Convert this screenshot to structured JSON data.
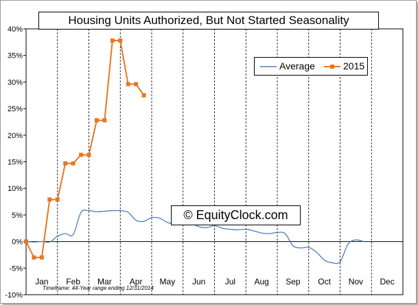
{
  "chart_data": {
    "type": "line",
    "title": "Housing Units Authorized, But Not Started Seasonality",
    "watermark": "© EquityClock.com",
    "footnote": "Timeframe: 44-Year range ending 12/31/2014",
    "xlabel": "",
    "ylabel": "",
    "categories": [
      "Jan",
      "Feb",
      "Mar",
      "Apr",
      "May",
      "Jun",
      "Jul",
      "Aug",
      "Sep",
      "Oct",
      "Nov",
      "Dec"
    ],
    "ylim": [
      -0.1,
      0.4
    ],
    "yticks": [
      "40%",
      "35%",
      "30%",
      "25%",
      "20%",
      "15%",
      "10%",
      "5%",
      "0%",
      "-5%",
      "-10%"
    ],
    "grid": {
      "vertical": "dashed",
      "horizontal": false
    },
    "legend": {
      "position": "top-right",
      "entries": [
        "Average",
        "2015"
      ]
    },
    "series": [
      {
        "name": "Average",
        "color": "#4a7ebb",
        "smooth": true,
        "points": [
          [
            0.0,
            0.0
          ],
          [
            0.25,
            -0.001
          ],
          [
            0.5,
            0.0
          ],
          [
            0.75,
            -0.001
          ],
          [
            1.0,
            0.01
          ],
          [
            1.25,
            0.015
          ],
          [
            1.5,
            0.013
          ],
          [
            1.75,
            0.055
          ],
          [
            2.0,
            0.058
          ],
          [
            2.25,
            0.056
          ],
          [
            2.5,
            0.057
          ],
          [
            2.75,
            0.058
          ],
          [
            3.0,
            0.058
          ],
          [
            3.25,
            0.055
          ],
          [
            3.5,
            0.04
          ],
          [
            3.75,
            0.038
          ],
          [
            4.0,
            0.045
          ],
          [
            4.25,
            0.044
          ],
          [
            4.5,
            0.036
          ],
          [
            4.75,
            0.033
          ],
          [
            5.0,
            0.036
          ],
          [
            5.25,
            0.035
          ],
          [
            5.5,
            0.028
          ],
          [
            5.75,
            0.026
          ],
          [
            6.0,
            0.03
          ],
          [
            6.25,
            0.025
          ],
          [
            6.5,
            0.023
          ],
          [
            6.75,
            0.022
          ],
          [
            7.0,
            0.023
          ],
          [
            7.25,
            0.02
          ],
          [
            7.5,
            0.016
          ],
          [
            7.75,
            0.015
          ],
          [
            8.0,
            0.017
          ],
          [
            8.25,
            0.015
          ],
          [
            8.5,
            -0.008
          ],
          [
            8.75,
            -0.012
          ],
          [
            9.0,
            -0.011
          ],
          [
            9.25,
            -0.02
          ],
          [
            9.5,
            -0.035
          ],
          [
            9.75,
            -0.04
          ],
          [
            10.0,
            -0.038
          ],
          [
            10.25,
            -0.005
          ],
          [
            10.5,
            0.003
          ],
          [
            10.75,
            0.0
          ]
        ]
      },
      {
        "name": "2015",
        "color": "#e87722",
        "marker": "square",
        "points": [
          [
            0.0,
            0.0
          ],
          [
            0.25,
            -0.03
          ],
          [
            0.5,
            -0.03
          ],
          [
            0.75,
            0.079
          ],
          [
            1.0,
            0.079
          ],
          [
            1.25,
            0.147
          ],
          [
            1.5,
            0.147
          ],
          [
            1.75,
            0.163
          ],
          [
            2.0,
            0.163
          ],
          [
            2.25,
            0.228
          ],
          [
            2.5,
            0.228
          ],
          [
            2.75,
            0.378
          ],
          [
            3.0,
            0.378
          ],
          [
            3.25,
            0.296
          ],
          [
            3.5,
            0.296
          ],
          [
            3.75,
            0.275
          ]
        ]
      }
    ]
  }
}
